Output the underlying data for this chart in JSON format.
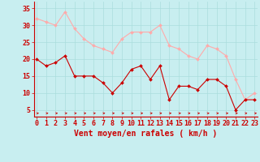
{
  "x": [
    0,
    1,
    2,
    3,
    4,
    5,
    6,
    7,
    8,
    9,
    10,
    11,
    12,
    13,
    14,
    15,
    16,
    17,
    18,
    19,
    20,
    21,
    22,
    23
  ],
  "mean_wind": [
    20,
    18,
    19,
    21,
    15,
    15,
    15,
    13,
    10,
    13,
    17,
    18,
    14,
    18,
    8,
    12,
    12,
    11,
    14,
    14,
    12,
    5,
    8,
    8
  ],
  "gust_wind": [
    32,
    31,
    30,
    34,
    29,
    26,
    24,
    23,
    22,
    26,
    28,
    28,
    28,
    30,
    24,
    23,
    21,
    20,
    24,
    23,
    21,
    14,
    8,
    10
  ],
  "mean_color": "#cc0000",
  "gust_color": "#ffaaaa",
  "bg_color": "#c8eef0",
  "grid_color": "#aadddd",
  "xlabel": "Vent moyen/en rafales ( km/h )",
  "xlabel_color": "#cc0000",
  "ylabel_vals": [
    5,
    10,
    15,
    20,
    25,
    30,
    35
  ],
  "ylim": [
    3,
    37
  ],
  "xlim": [
    -0.3,
    23.3
  ],
  "tick_color": "#cc0000",
  "axes_color": "#cc0000",
  "label_fontsize": 7,
  "tick_fontsize": 6
}
